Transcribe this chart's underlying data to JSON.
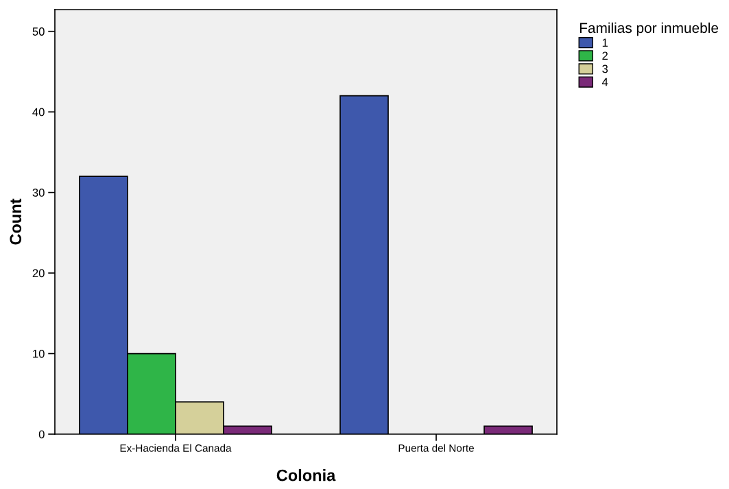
{
  "chart_data": {
    "type": "bar",
    "xlabel": "Colonia",
    "ylabel": "Count",
    "legend_title": "Familias por inmueble",
    "categories": [
      "Ex-Hacienda El Canada",
      "Puerta del Norte"
    ],
    "series": [
      {
        "name": "1",
        "color": "#3e58ac",
        "values": [
          32,
          42
        ]
      },
      {
        "name": "2",
        "color": "#2fb548",
        "values": [
          10,
          null
        ]
      },
      {
        "name": "3",
        "color": "#d5d09a",
        "values": [
          4,
          null
        ]
      },
      {
        "name": "4",
        "color": "#7a2a78",
        "values": [
          1,
          1
        ]
      }
    ],
    "ylim": [
      0,
      52.7
    ],
    "yticks": [
      0,
      10,
      20,
      30,
      40,
      50
    ],
    "grid": false,
    "legend": "top right"
  }
}
